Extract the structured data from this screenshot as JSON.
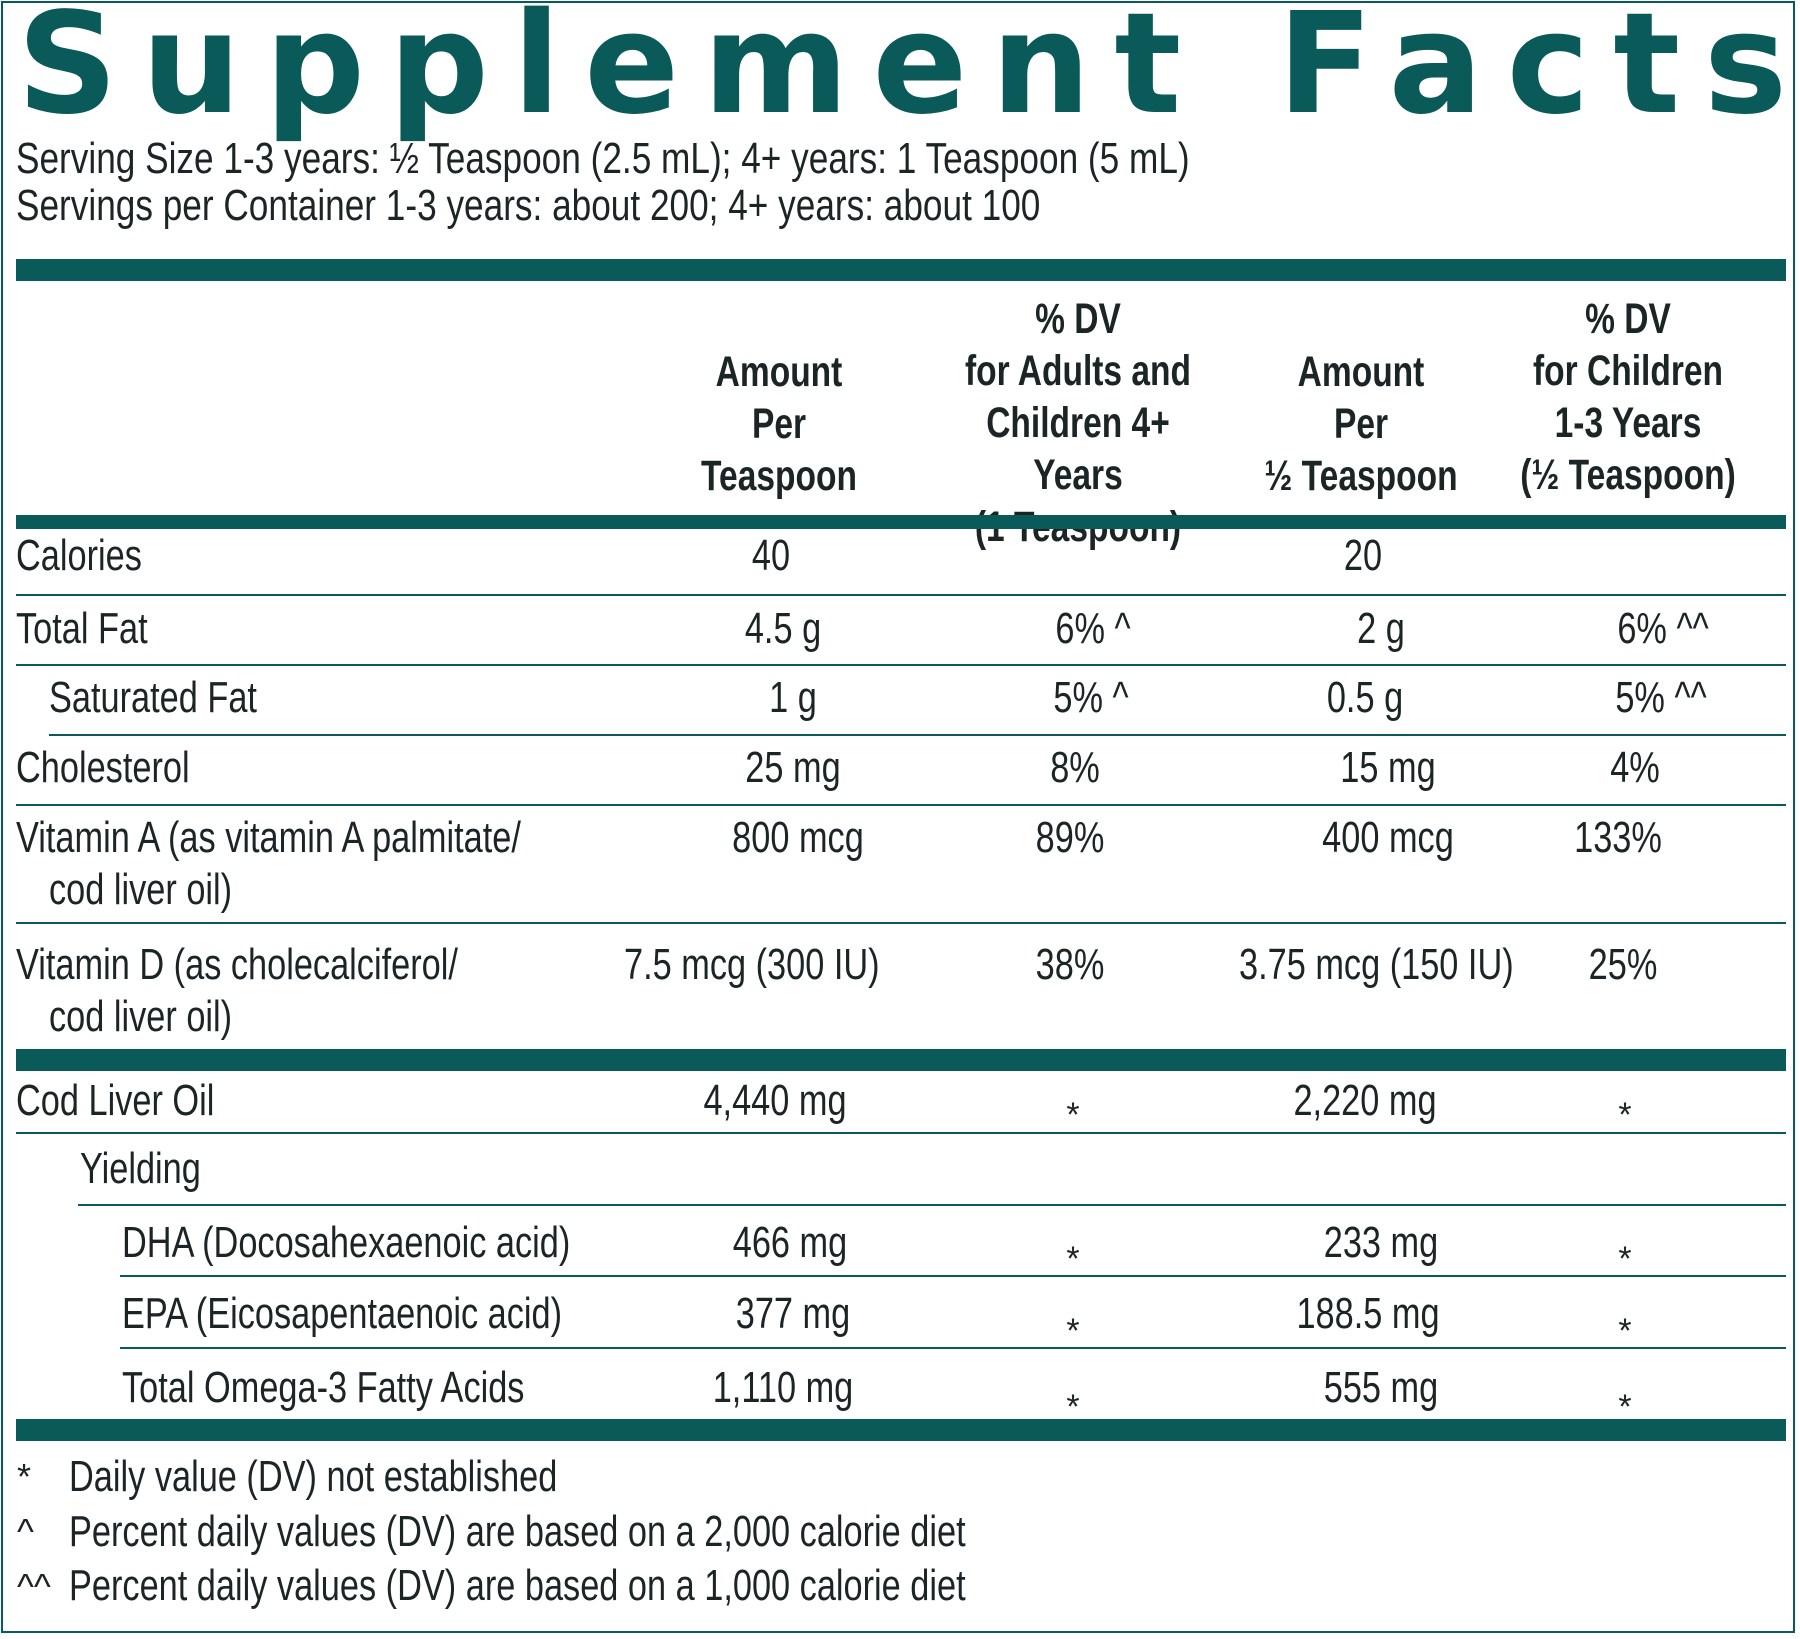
{
  "title": "Supplement Facts",
  "serving_size": "Serving Size 1-3 years: ½  Teaspoon (2.5 mL); 4+ years: 1 Teaspoon (5 mL)",
  "servings_per_container": "Servings per Container 1-3 years: about 200; 4+ years: about 100",
  "columns": [
    "Amount\nPer\nTeaspoon",
    "% DV\nfor Adults and\nChildren  4+ Years\n(1 Teaspoon)",
    "Amount\nPer\n½ Teaspoon",
    "% DV\nfor Children\n1-3 Years\n(½ Teaspoon)"
  ],
  "rows": [
    {
      "label": "Calories",
      "amt1": "40",
      "dv1": "",
      "amt2": "20",
      "dv2": ""
    },
    {
      "label": "Total Fat",
      "amt1": "4.5 g",
      "dv1": "6% ^",
      "amt2": "2 g",
      "dv2": "6% ^^"
    },
    {
      "label": "Saturated Fat",
      "amt1": "1 g",
      "dv1": "5% ^",
      "amt2": "0.5 g",
      "dv2": "5% ^^"
    },
    {
      "label": "Cholesterol",
      "amt1": "25 mg",
      "dv1": "8%",
      "amt2": "15 mg",
      "dv2": "4%"
    },
    {
      "label": "Vitamin A (as vitamin A palmitate/",
      "label2": "cod liver oil)",
      "amt1": "800 mcg",
      "dv1": "89%",
      "amt2": "400 mcg",
      "dv2": "133%"
    },
    {
      "label": "Vitamin D (as cholecalciferol/",
      "label2": "cod liver oil)",
      "amt1": "7.5 mcg (300 IU)",
      "dv1": "38%",
      "amt2": "3.75 mcg (150 IU)",
      "dv2": "25%"
    },
    {
      "label": "Cod Liver Oil",
      "amt1": "4,440 mg",
      "dv1": "*",
      "amt2": "2,220 mg",
      "dv2": "*"
    },
    {
      "label": "Yielding"
    },
    {
      "label": "DHA (Docosahexaenoic acid)",
      "amt1": "466 mg",
      "dv1": "*",
      "amt2": "233 mg",
      "dv2": "*"
    },
    {
      "label": "EPA (Eicosapentaenoic acid)",
      "amt1": "377 mg",
      "dv1": "*",
      "amt2": "188.5 mg",
      "dv2": "*"
    },
    {
      "label": "Total Omega-3 Fatty Acids",
      "amt1": "1,110 mg",
      "dv1": "*",
      "amt2": "555 mg",
      "dv2": "*"
    }
  ],
  "footnotes": [
    {
      "symbol": "*",
      "text": "Daily value (DV) not established"
    },
    {
      "symbol": "^",
      "text": "Percent daily values (DV) are based on a 2,000 calorie diet"
    },
    {
      "symbol": "^^",
      "text": "Percent daily values (DV) are based on a 1,000 calorie diet"
    }
  ],
  "colors": {
    "accent": "#0b5a5a",
    "text": "#1c2526"
  }
}
